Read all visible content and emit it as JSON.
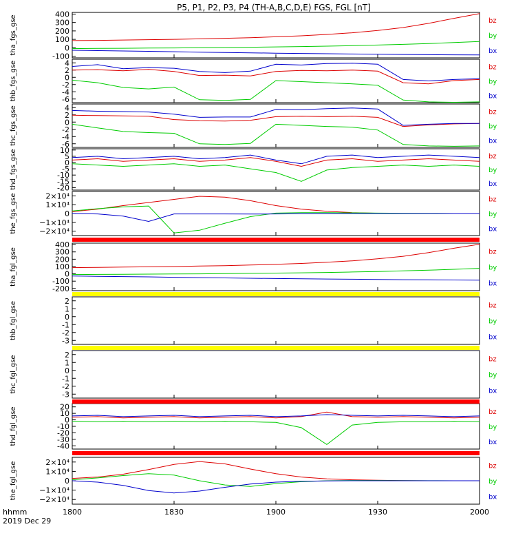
{
  "title": "P5, P1, P2, P3, P4 (TH-A,B,C,D,E) FGS, FGL [nT]",
  "colors": {
    "bz": "#dd0000",
    "by": "#00cc00",
    "bx": "#0000cc",
    "axis": "#000000",
    "bar_red": "#ff0000",
    "bar_yellow": "#ffff00",
    "bar_black": "#000000"
  },
  "footer": {
    "time_label": "hhmm",
    "date_label": "2019 Dec 29"
  },
  "chart_data": {
    "type": "line",
    "x_ticks": [
      "1800",
      "1830",
      "1900",
      "1930",
      "2000"
    ],
    "panels": [
      {
        "ylabel": "tha_fgs_gse",
        "ylim": [
          -120,
          420
        ],
        "yticks": [
          "400",
          "300",
          "200",
          "100",
          "0",
          "-100"
        ],
        "tick_vals": [
          400,
          300,
          200,
          100,
          0,
          -100
        ],
        "legend": [
          "bz",
          "by",
          "bx"
        ],
        "bar_below": null,
        "series": [
          {
            "name": "bz",
            "values": [
              85,
              88,
              92,
              96,
              100,
              106,
              112,
              120,
              130,
              142,
              158,
              178,
              205,
              240,
              290,
              350,
              405
            ]
          },
          {
            "name": "by",
            "values": [
              -10,
              -8,
              -6,
              -4,
              -2,
              0,
              3,
              6,
              10,
              14,
              19,
              25,
              32,
              40,
              50,
              62,
              75
            ]
          },
          {
            "name": "bx",
            "values": [
              -30,
              -34,
              -38,
              -42,
              -47,
              -52,
              -56,
              -60,
              -64,
              -68,
              -71,
              -74,
              -77,
              -80,
              -82,
              -84,
              -86
            ]
          }
        ]
      },
      {
        "ylabel": "thb_fgs_gse",
        "ylim": [
          -7,
          5
        ],
        "yticks": [
          "4",
          "2",
          "0",
          "-2",
          "-4",
          "-6"
        ],
        "tick_vals": [
          4,
          2,
          0,
          -2,
          -4,
          -6
        ],
        "legend": [
          "bz",
          "by",
          "bx"
        ],
        "bar_below": null,
        "series": [
          {
            "name": "bz",
            "values": [
              2,
              2.1,
              1.8,
              2.2,
              1.6,
              0.5,
              0.6,
              0.4,
              1.6,
              1.9,
              1.8,
              2,
              1.7,
              -1.5,
              -1.8,
              -0.9,
              -0.6
            ]
          },
          {
            "name": "by",
            "values": [
              -0.8,
              -1.5,
              -2.8,
              -3.2,
              -2.7,
              -6.2,
              -6.4,
              -6.1,
              -0.9,
              -1.2,
              -1.5,
              -1.8,
              -2.2,
              -6.3,
              -6.8,
              -6.9,
              -6.8
            ]
          },
          {
            "name": "bx",
            "values": [
              3,
              3.5,
              2.4,
              2.7,
              2.5,
              1.6,
              1.3,
              1.7,
              3.6,
              3.4,
              3.8,
              3.9,
              3.6,
              -0.6,
              -1.0,
              -0.6,
              -0.4
            ]
          }
        ]
      },
      {
        "ylabel": "thc_fgs_gse",
        "ylim": [
          -7,
          5
        ],
        "yticks": [
          "4",
          "2",
          "0",
          "-2",
          "-4",
          "-6"
        ],
        "tick_vals": [
          4,
          2,
          0,
          -2,
          -4,
          -6
        ],
        "legend": [
          "bz",
          "by",
          "bx"
        ],
        "bar_below": null,
        "series": [
          {
            "name": "bz",
            "values": [
              1.9,
              1.8,
              1.7,
              1.6,
              0.7,
              0.4,
              0.3,
              0.5,
              1.5,
              1.6,
              1.5,
              1.6,
              1.3,
              -1.2,
              -0.8,
              -0.5,
              -0.4
            ]
          },
          {
            "name": "by",
            "values": [
              -0.6,
              -1.6,
              -2.6,
              -2.9,
              -3.1,
              -6.0,
              -6.2,
              -5.9,
              -0.6,
              -0.9,
              -1.2,
              -1.4,
              -2.2,
              -6.2,
              -6.6,
              -6.7,
              -6.6
            ]
          },
          {
            "name": "bx",
            "values": [
              3.2,
              3.0,
              2.9,
              2.8,
              2.2,
              1.3,
              1.4,
              1.4,
              3.5,
              3.4,
              3.7,
              3.9,
              3.6,
              -0.9,
              -0.6,
              -0.4,
              -0.4
            ]
          }
        ]
      },
      {
        "ylabel": "thd_fgs_gse",
        "ylim": [
          -22,
          11
        ],
        "yticks": [
          "10",
          "5",
          "0",
          "-5",
          "-10",
          "-15",
          "-20"
        ],
        "tick_vals": [
          10,
          5,
          0,
          -5,
          -10,
          -15,
          -20
        ],
        "legend": [
          "bz",
          "by",
          "bx"
        ],
        "bar_below": null,
        "series": [
          {
            "name": "bz",
            "values": [
              2,
              3,
              1,
              2,
              3,
              1,
              2,
              4,
              1,
              -3,
              2,
              3,
              1,
              2,
              3,
              2,
              1
            ]
          },
          {
            "name": "by",
            "values": [
              -1,
              -2,
              -3,
              -2,
              -1,
              -3,
              -2,
              -5,
              -8,
              -15,
              -6,
              -4,
              -3,
              -2,
              -3,
              -2,
              -3
            ]
          },
          {
            "name": "bx",
            "values": [
              4,
              5,
              3,
              4,
              5,
              3,
              4,
              6,
              2,
              -1,
              5,
              6,
              4,
              5,
              6,
              5,
              4
            ]
          }
        ]
      },
      {
        "ylabel": "the_fgs_gse",
        "ylim": [
          -25000,
          25000
        ],
        "yticks": [
          "2×10⁴",
          "1×10⁴",
          "0",
          "−1×10⁴",
          "−2×10⁴"
        ],
        "tick_vals": [
          20000,
          10000,
          0,
          -10000,
          -20000
        ],
        "legend": [
          "bz",
          "by",
          "bx"
        ],
        "bar_below": "bar_red",
        "series": [
          {
            "name": "bz",
            "values": [
              2000,
              5000,
              9000,
              12500,
              16000,
              19500,
              18500,
              14500,
              9000,
              5000,
              2500,
              1000,
              300,
              0,
              0,
              0,
              0
            ]
          },
          {
            "name": "by",
            "values": [
              3000,
              5500,
              7500,
              8500,
              -22000,
              -19000,
              -11000,
              -3500,
              500,
              1000,
              1000,
              800,
              500,
              300,
              200,
              0,
              0
            ]
          },
          {
            "name": "bx",
            "values": [
              0,
              -500,
              -3000,
              -9000,
              -500,
              -500,
              -500,
              -600,
              -500,
              -300,
              -200,
              -100,
              0,
              0,
              0,
              0,
              0
            ]
          }
        ]
      },
      {
        "ylabel": "tha_fgl_gse",
        "ylim": [
          -230,
          420
        ],
        "yticks": [
          "400",
          "300",
          "200",
          "100",
          "0",
          "-100",
          "-200"
        ],
        "tick_vals": [
          400,
          300,
          200,
          100,
          0,
          -100,
          -200
        ],
        "legend": [
          "bz",
          "by",
          "bx"
        ],
        "bar_below": "bar_yellow",
        "series": [
          {
            "name": "bz",
            "values": [
              85,
              88,
              92,
              96,
              100,
              106,
              112,
              120,
              130,
              142,
              158,
              178,
              205,
              240,
              290,
              350,
              405
            ]
          },
          {
            "name": "by",
            "values": [
              -10,
              -8,
              -6,
              -4,
              -2,
              0,
              3,
              6,
              10,
              14,
              19,
              25,
              32,
              40,
              50,
              62,
              75
            ]
          },
          {
            "name": "bx",
            "values": [
              -30,
              -34,
              -38,
              -42,
              -47,
              -52,
              -56,
              -60,
              -64,
              -68,
              -71,
              -74,
              -77,
              -80,
              -82,
              -84,
              -86
            ]
          }
        ]
      },
      {
        "ylabel": "thb_fgl_gse",
        "ylim": [
          -3.5,
          2.5
        ],
        "yticks": [
          "2",
          "1",
          "0",
          "-1",
          "-2",
          "-3"
        ],
        "tick_vals": [
          2,
          1,
          0,
          -1,
          -2,
          -3
        ],
        "legend": [
          "bz",
          "by",
          "bx"
        ],
        "bar_below": "bar_yellow",
        "series": []
      },
      {
        "ylabel": "thc_fgl_gse",
        "ylim": [
          -3.5,
          2.5
        ],
        "yticks": [
          "2",
          "1",
          "0",
          "-1",
          "-2",
          "-3"
        ],
        "tick_vals": [
          2,
          1,
          0,
          -1,
          -2,
          -3
        ],
        "legend": [
          "bz",
          "by",
          "bx"
        ],
        "bar_below": "bar_red",
        "series": []
      },
      {
        "ylabel": "thd_fgl_gse",
        "ylim": [
          -45,
          25
        ],
        "yticks": [
          "20",
          "10",
          "0",
          "-10",
          "-20",
          "-30",
          "-40"
        ],
        "tick_vals": [
          20,
          10,
          0,
          -10,
          -20,
          -30,
          -40
        ],
        "legend": [
          "bz",
          "by",
          "bx"
        ],
        "bar_below": "bar_red",
        "series": [
          {
            "name": "bz",
            "values": [
              4,
              5,
              3,
              4,
              5,
              3,
              4,
              5,
              3,
              5,
              12,
              5,
              4,
              5,
              4,
              3,
              4
            ]
          },
          {
            "name": "by",
            "values": [
              -2,
              -3,
              -2,
              -3,
              -2,
              -3,
              -2,
              -3,
              -4,
              -12,
              -38,
              -8,
              -4,
              -3,
              -3,
              -2,
              -3
            ]
          },
          {
            "name": "bx",
            "values": [
              6,
              7,
              5,
              6,
              7,
              5,
              6,
              7,
              5,
              6,
              8,
              7,
              6,
              7,
              6,
              5,
              6
            ]
          }
        ]
      },
      {
        "ylabel": "the_fgl_gse",
        "ylim": [
          -25000,
          25000
        ],
        "yticks": [
          "2×10⁴",
          "1×10⁴",
          "0",
          "−1×10⁴",
          "−2×10⁴"
        ],
        "tick_vals": [
          20000,
          10000,
          0,
          -10000,
          -20000
        ],
        "legend": [
          "bz",
          "by",
          "bx"
        ],
        "bar_below": null,
        "series": [
          {
            "name": "bz",
            "values": [
              2500,
              4000,
              7000,
              12000,
              17500,
              20500,
              18000,
              12500,
              7500,
              4000,
              2000,
              1000,
              500,
              200,
              0,
              0,
              0
            ]
          },
          {
            "name": "by",
            "values": [
              1000,
              3000,
              5500,
              7500,
              6000,
              0,
              -4500,
              -6000,
              -3000,
              -1000,
              0,
              300,
              300,
              200,
              100,
              0,
              0
            ]
          },
          {
            "name": "bx",
            "values": [
              0,
              -1500,
              -5000,
              -10500,
              -13000,
              -11000,
              -7000,
              -3500,
              -1500,
              -500,
              -200,
              0,
              0,
              0,
              0,
              0,
              0
            ]
          }
        ]
      }
    ]
  }
}
